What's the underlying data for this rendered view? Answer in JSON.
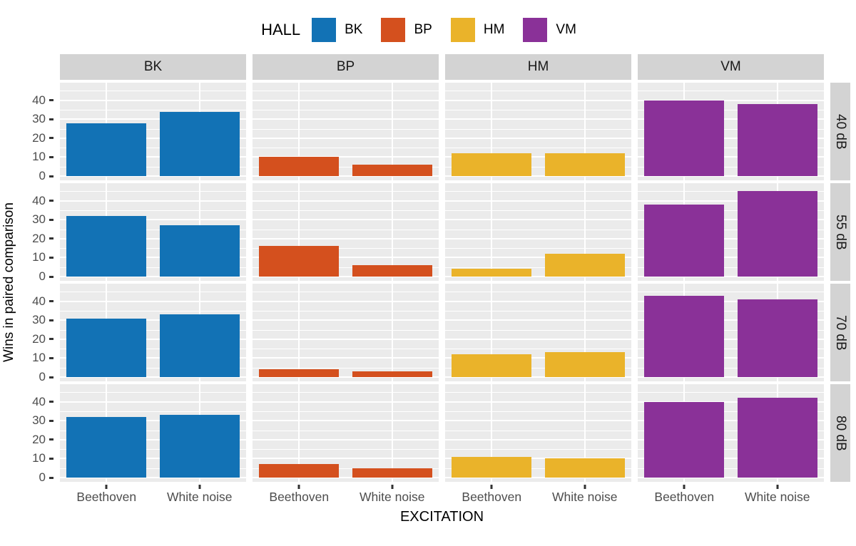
{
  "legend": {
    "title": "HALL",
    "items": [
      {
        "label": "BK",
        "color": "#1272B5"
      },
      {
        "label": "BP",
        "color": "#D4501E"
      },
      {
        "label": "HM",
        "color": "#EAB32A"
      },
      {
        "label": "VM",
        "color": "#8A3198"
      }
    ]
  },
  "chart_data": {
    "type": "bar",
    "title": "",
    "xlabel": "EXCITATION",
    "ylabel": "Wins in paired comparison",
    "categories": [
      "Beethoven",
      "White noise"
    ],
    "facet_columns": [
      "BK",
      "BP",
      "HM",
      "VM"
    ],
    "facet_rows": [
      "40 dB",
      "55 dB",
      "70 dB",
      "80 dB"
    ],
    "colors": {
      "BK": "#1272B5",
      "BP": "#D4501E",
      "HM": "#EAB32A",
      "VM": "#8A3198"
    },
    "yticks": [
      0,
      10,
      20,
      30,
      40
    ],
    "ylim": [
      0,
      47
    ],
    "grid": {
      "panel_background": "#EBEBEB",
      "gridline_color": "#FFFFFF",
      "strip_background": "#D3D3D3",
      "major_every": 10,
      "minor_every": 5,
      "legend_position": "top"
    },
    "values": [
      [
        [
          28,
          34
        ],
        [
          10,
          6
        ],
        [
          12,
          12
        ],
        [
          40,
          38
        ]
      ],
      [
        [
          32,
          27
        ],
        [
          16,
          6
        ],
        [
          4,
          12
        ],
        [
          38,
          45
        ]
      ],
      [
        [
          31,
          33
        ],
        [
          4,
          3
        ],
        [
          12,
          13
        ],
        [
          43,
          41
        ]
      ],
      [
        [
          32,
          33
        ],
        [
          7,
          5
        ],
        [
          11,
          10
        ],
        [
          40,
          42
        ]
      ]
    ]
  }
}
